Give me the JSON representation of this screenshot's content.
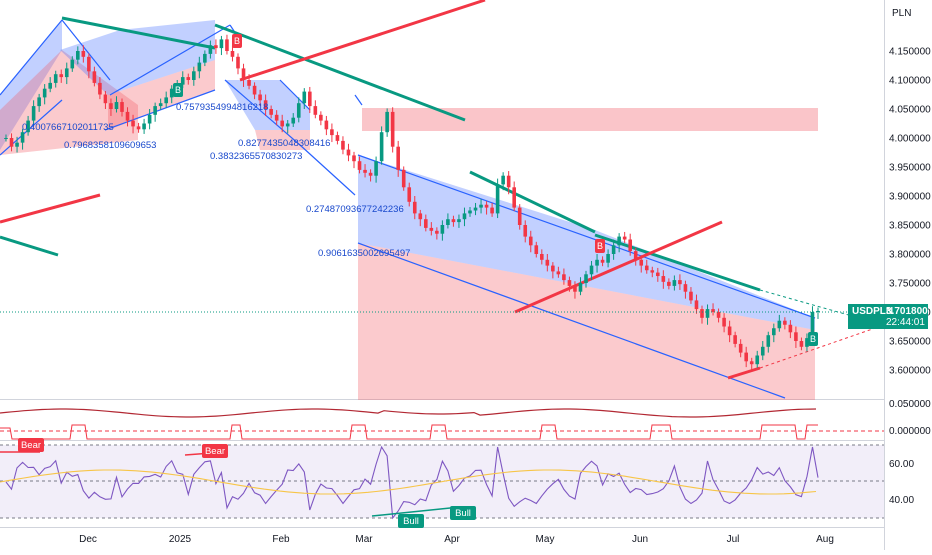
{
  "chart_data": {
    "type": "candlestick",
    "instrument": "USDPLN",
    "currency": "PLN",
    "last_price": "3.701800",
    "countdown": "22:44:01",
    "x_ticks": [
      "Dec",
      "2025",
      "Feb",
      "Mar",
      "Apr",
      "May",
      "Jun",
      "Jul",
      "Aug"
    ],
    "price_axis": {
      "ticks": [
        "4.150000",
        "4.100000",
        "4.050000",
        "4.000000",
        "3.950000",
        "3.900000",
        "3.850000",
        "3.800000",
        "3.750000",
        "3.700000",
        "3.650000",
        "3.600000"
      ],
      "ylim": [
        3.56,
        4.215
      ]
    },
    "close_series": [
      4.0,
      3.985,
      3.992,
      4.01,
      4.03,
      4.055,
      4.07,
      4.085,
      4.095,
      4.11,
      4.105,
      4.12,
      4.135,
      4.15,
      4.14,
      4.115,
      4.095,
      4.075,
      4.06,
      4.05,
      4.062,
      4.045,
      4.03,
      4.02,
      4.015,
      4.025,
      4.04,
      4.055,
      4.06,
      4.07,
      4.085,
      4.092,
      4.105,
      4.1,
      4.115,
      4.13,
      4.145,
      4.16,
      4.155,
      4.17,
      4.15,
      4.14,
      4.12,
      4.1,
      4.09,
      4.075,
      4.065,
      4.05,
      4.04,
      4.03,
      4.02,
      4.025,
      4.035,
      4.06,
      4.08,
      4.055,
      4.04,
      4.03,
      4.015,
      4.005,
      3.995,
      3.98,
      3.97,
      3.96,
      3.945,
      3.94,
      3.935,
      3.96,
      4.01,
      4.045,
      3.985,
      3.945,
      3.915,
      3.89,
      3.87,
      3.86,
      3.845,
      3.84,
      3.835,
      3.85,
      3.86,
      3.855,
      3.86,
      3.87,
      3.875,
      3.88,
      3.885,
      3.88,
      3.87,
      3.92,
      3.935,
      3.915,
      3.88,
      3.85,
      3.83,
      3.815,
      3.8,
      3.79,
      3.78,
      3.77,
      3.765,
      3.755,
      3.745,
      3.735,
      3.75,
      3.765,
      3.78,
      3.79,
      3.785,
      3.8,
      3.815,
      3.83,
      3.825,
      3.805,
      3.79,
      3.78,
      3.772,
      3.768,
      3.762,
      3.752,
      3.745,
      3.755,
      3.748,
      3.735,
      3.72,
      3.705,
      3.69,
      3.705,
      3.7,
      3.69,
      3.675,
      3.66,
      3.645,
      3.63,
      3.615,
      3.61,
      3.625,
      3.64,
      3.66,
      3.672,
      3.685,
      3.678,
      3.665,
      3.65,
      3.64,
      3.655,
      3.7,
      3.7018
    ],
    "indicator_rsi": {
      "ticks": [
        "60.00",
        "40.00"
      ],
      "labels": [
        "Bear",
        "Bear",
        "Bull",
        "Bull"
      ]
    },
    "indicator_osc": {
      "ticks": [
        "0.050000",
        "0.000000"
      ]
    },
    "annotations": [
      "0.4007667102011735",
      "0.7968358109609653",
      "0.7579354994816218",
      "0.8277435048308416",
      "0.3832365570830273",
      "0.27487093677242236",
      "0.9061635002695497"
    ],
    "markers": [
      "B",
      "B",
      "B",
      "B"
    ]
  }
}
